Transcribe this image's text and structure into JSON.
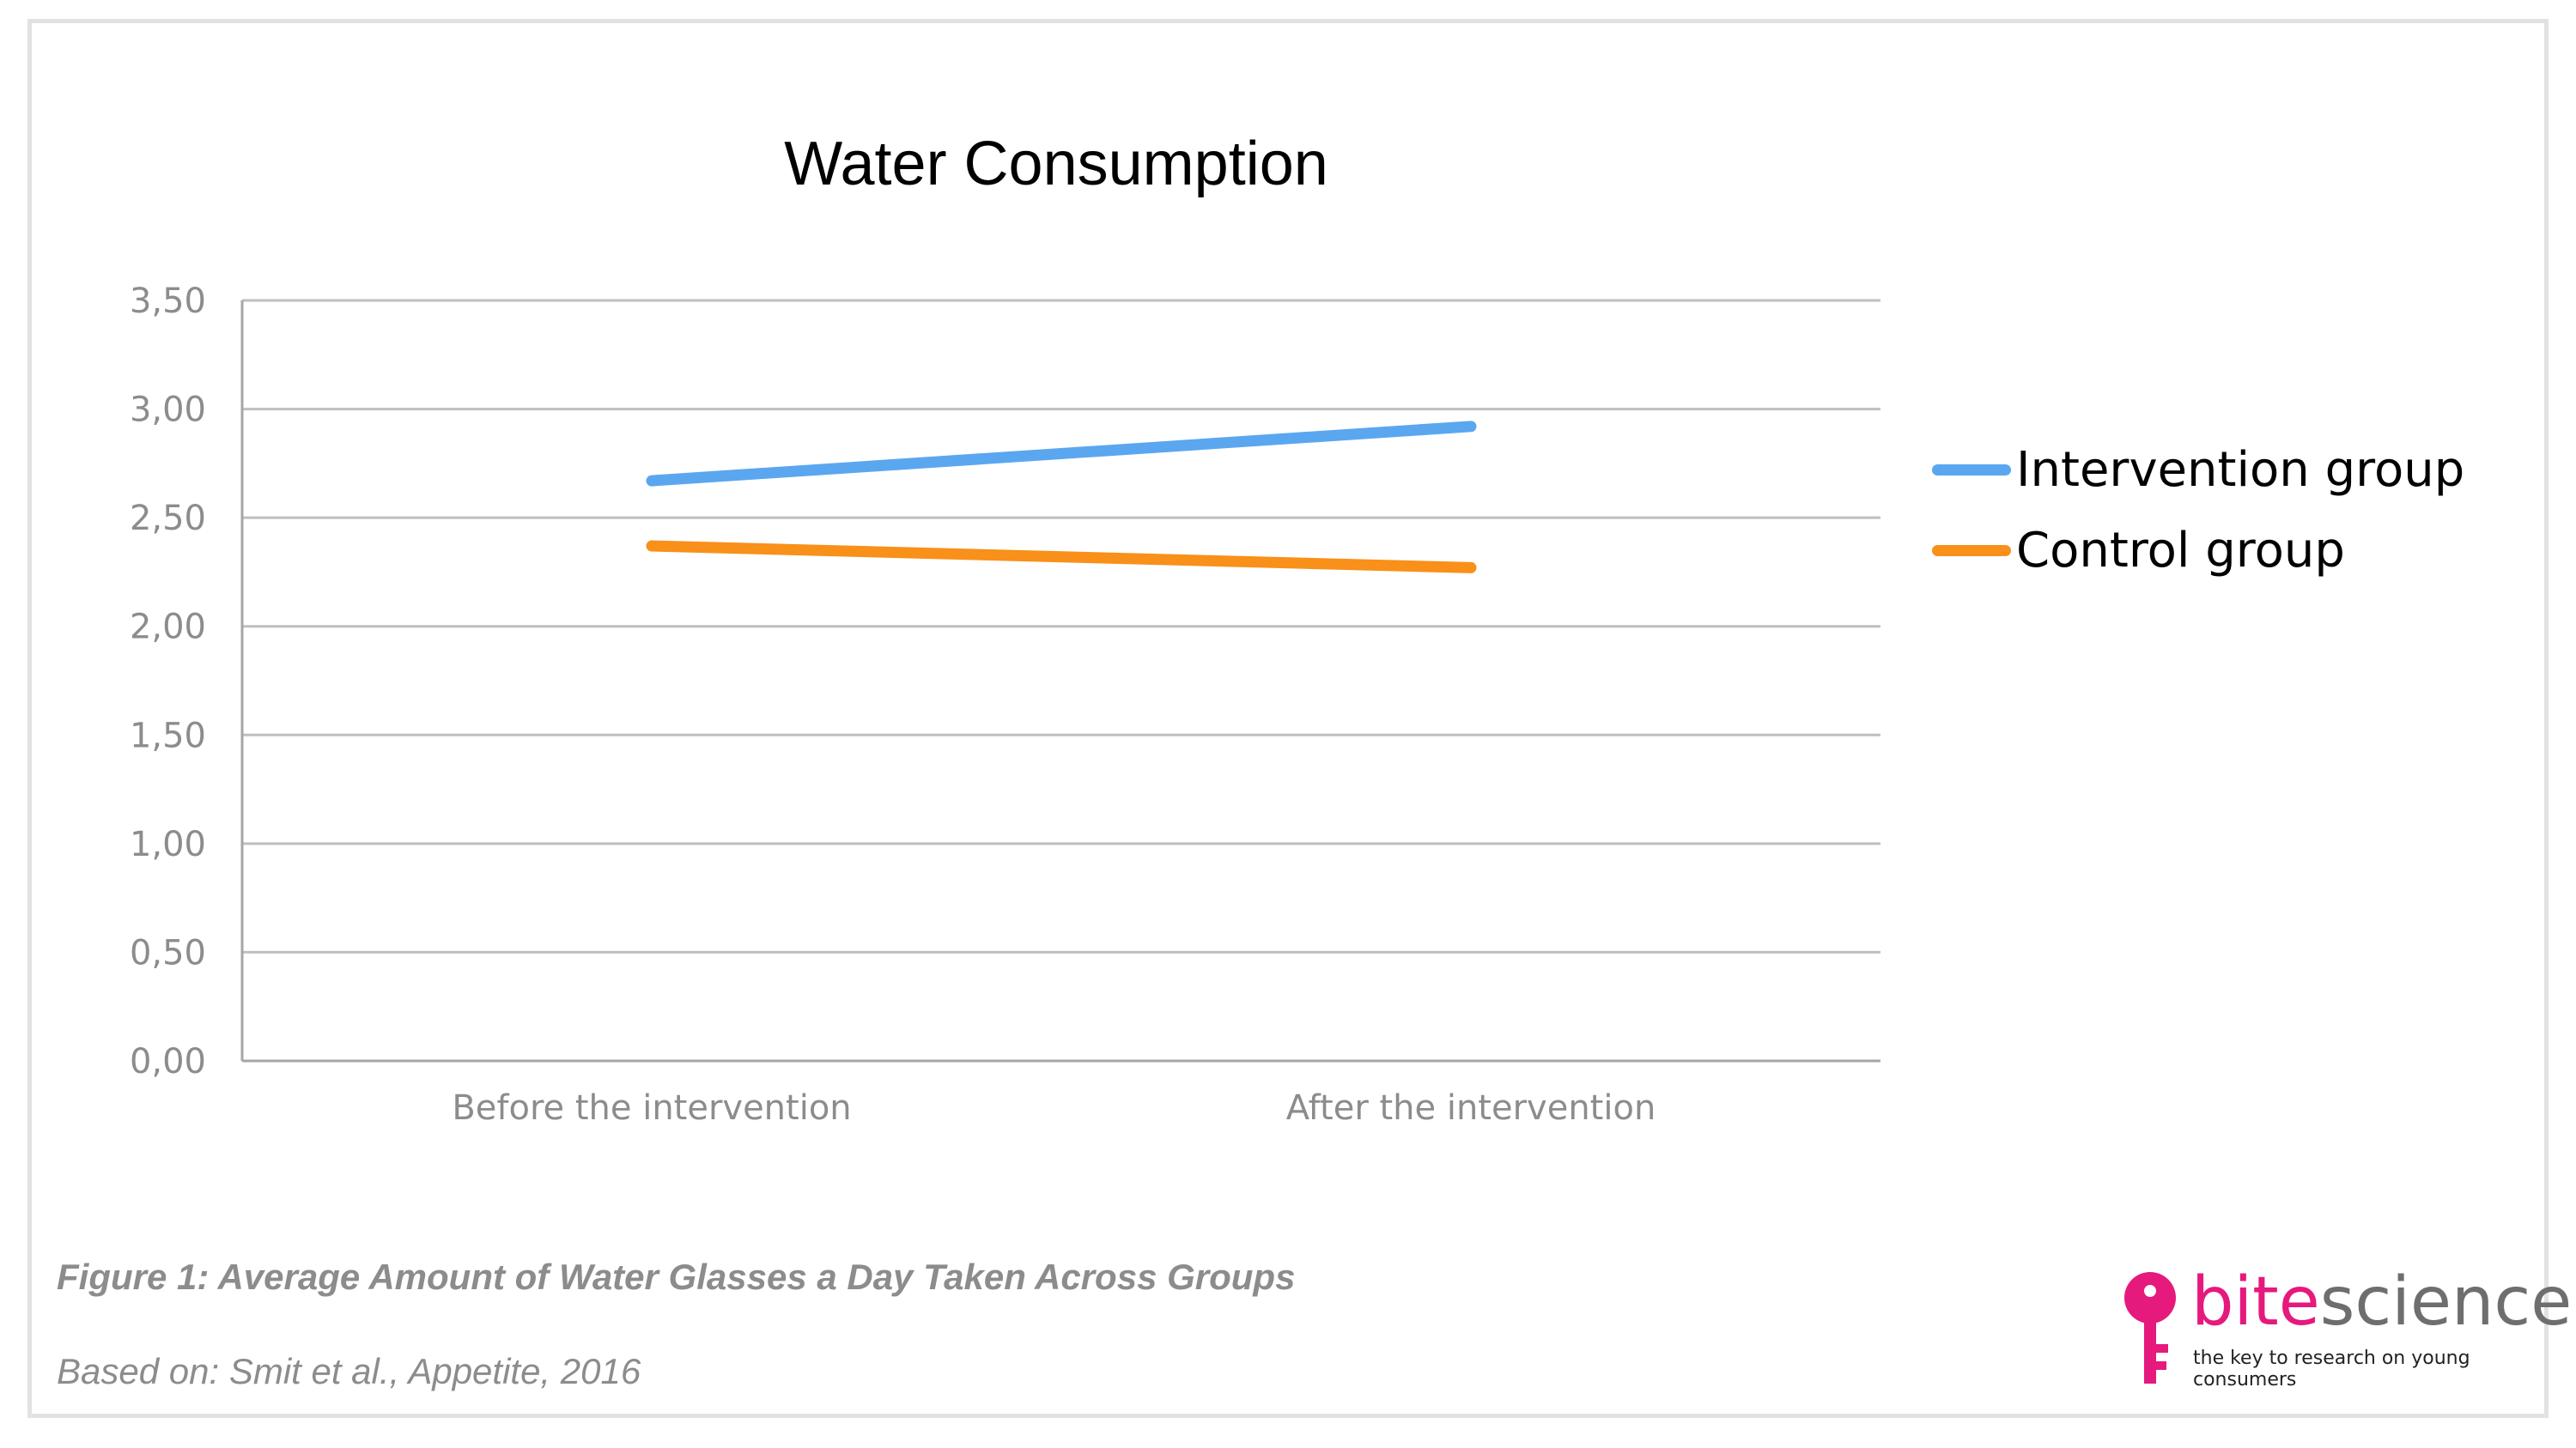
{
  "chart_data": {
    "type": "line",
    "title": "Water Consumption",
    "categories": [
      "Before the intervention",
      "After the intervention"
    ],
    "series": [
      {
        "name": "Intervention group",
        "values": [
          2.67,
          2.92
        ],
        "color": "#5aa7f0"
      },
      {
        "name": "Control group",
        "values": [
          2.37,
          2.27
        ],
        "color": "#f8901a"
      }
    ],
    "ylim": [
      0,
      3.5
    ],
    "yticks": [
      "0,00",
      "0,50",
      "1,00",
      "1,50",
      "2,00",
      "2,50",
      "3,00",
      "3,50"
    ],
    "ytick_values": [
      0,
      0.5,
      1,
      1.5,
      2,
      2.5,
      3,
      3.5
    ],
    "grid": true,
    "legend_position": "right"
  },
  "caption": "Figure 1: Average Amount of Water Glasses a Day Taken Across Groups",
  "source": "Based on: Smit et al., Appetite, 2016",
  "logo": {
    "name_part1": "bite",
    "name_part2": "science",
    "tagline": "the key to research on young consumers",
    "icon": "key-icon",
    "color": "#e6197d"
  }
}
